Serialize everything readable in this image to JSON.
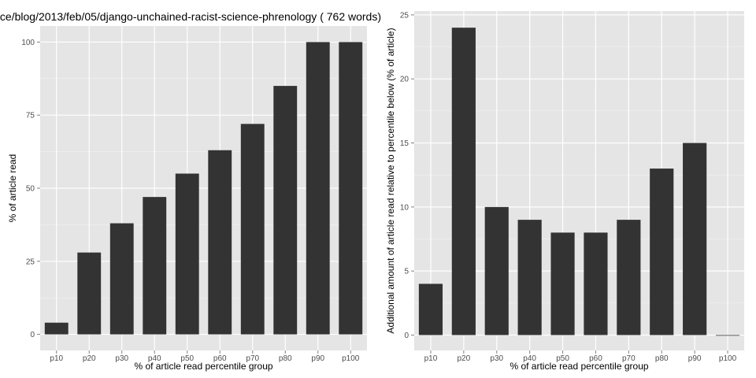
{
  "title": "ce/blog/2013/feb/05/django-unchained-racist-science-phrenology ( 762 words)",
  "colors": {
    "panel_background": "#e5e5e5",
    "grid_major": "#ffffff",
    "grid_minor": "#f2f2f2",
    "bar": "#333333"
  },
  "chart_data": [
    {
      "type": "bar",
      "categories": [
        "p10",
        "p20",
        "p30",
        "p40",
        "p50",
        "p60",
        "p70",
        "p80",
        "p90",
        "p100"
      ],
      "values": [
        4,
        28,
        38,
        47,
        55,
        63,
        72,
        85,
        100,
        100
      ],
      "xlabel": "% of article read percentile group",
      "ylabel": "% of article read",
      "yticks": [
        0,
        25,
        50,
        75,
        100
      ],
      "ylim": [
        -5.5,
        105.5
      ],
      "grid": true
    },
    {
      "type": "bar",
      "categories": [
        "p10",
        "p20",
        "p30",
        "p40",
        "p50",
        "p60",
        "p70",
        "p80",
        "p90",
        "p100"
      ],
      "values": [
        4,
        24,
        10,
        9,
        8,
        8,
        9,
        13,
        15,
        0
      ],
      "xlabel": "% of article read percentile group",
      "ylabel": "Additional amount of article read relative to percentile below (% of article)",
      "yticks": [
        0,
        5,
        10,
        15,
        20,
        25
      ],
      "ylim": [
        -1.2,
        25.3
      ],
      "grid": true
    }
  ]
}
